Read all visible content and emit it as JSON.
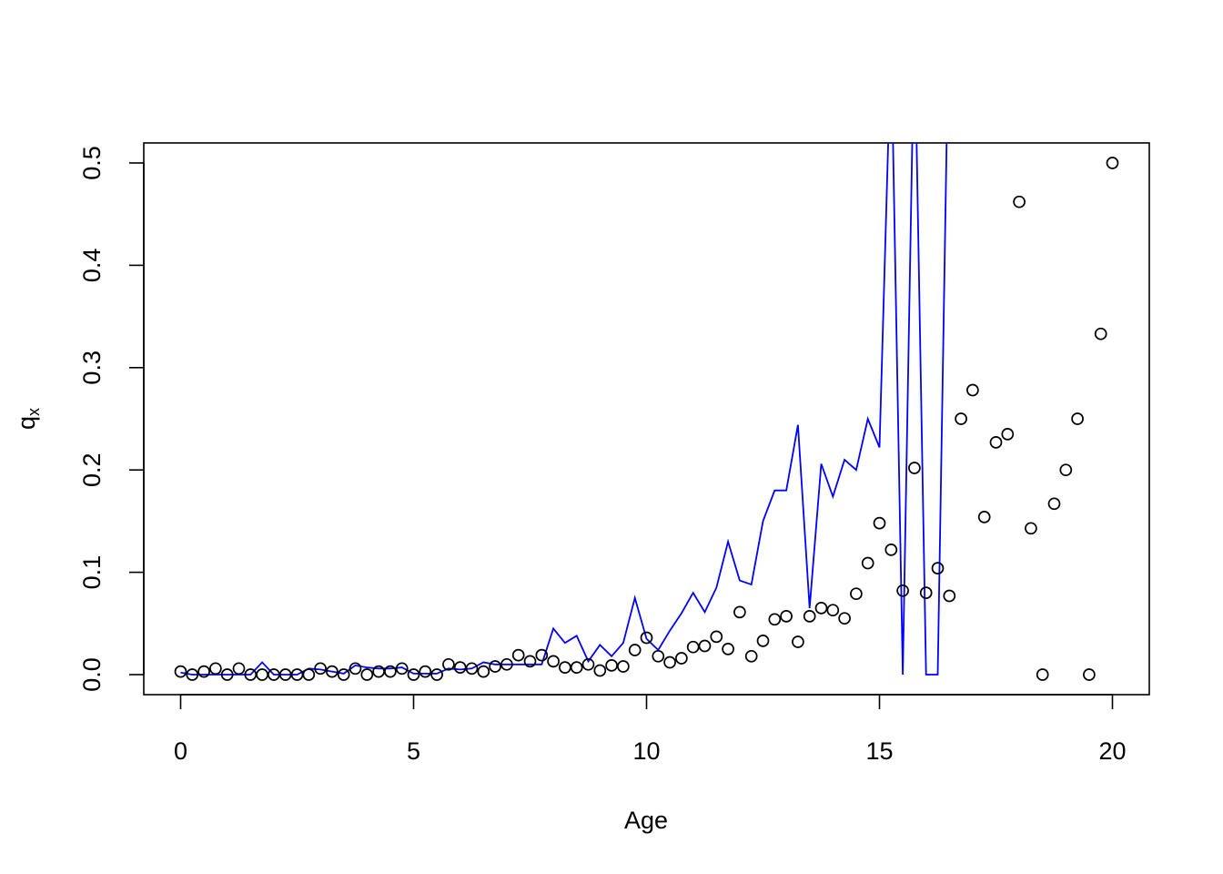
{
  "chart_data": {
    "type": "scatter",
    "xlabel": "Age",
    "ylabel": {
      "base": "q",
      "subscript": "x"
    },
    "xlim": [
      0,
      20
    ],
    "ylim": [
      0,
      0.5
    ],
    "x_ticks": [
      0,
      5,
      10,
      15,
      20
    ],
    "y_ticks": [
      0.0,
      0.1,
      0.2,
      0.3,
      0.4,
      0.5
    ],
    "x_tick_labels": [
      "0",
      "5",
      "10",
      "15",
      "20"
    ],
    "y_tick_labels": [
      "0.0",
      "0.1",
      "0.2",
      "0.3",
      "0.4",
      "0.5"
    ],
    "grid": false,
    "legend": "none",
    "series": [
      {
        "kind": "points",
        "color": "#000000",
        "points": [
          [
            0.0,
            0.003
          ],
          [
            0.25,
            0.0
          ],
          [
            0.5,
            0.003
          ],
          [
            0.75,
            0.006
          ],
          [
            1.0,
            0.0
          ],
          [
            1.25,
            0.006
          ],
          [
            1.5,
            0.0
          ],
          [
            1.75,
            0.0
          ],
          [
            2.0,
            0.0
          ],
          [
            2.25,
            0.0
          ],
          [
            2.5,
            0.0
          ],
          [
            2.75,
            0.0
          ],
          [
            3.0,
            0.006
          ],
          [
            3.25,
            0.003
          ],
          [
            3.5,
            0.0
          ],
          [
            3.75,
            0.006
          ],
          [
            4.0,
            0.0
          ],
          [
            4.25,
            0.003
          ],
          [
            4.5,
            0.003
          ],
          [
            4.75,
            0.006
          ],
          [
            5.0,
            0.0
          ],
          [
            5.25,
            0.003
          ],
          [
            5.5,
            0.0
          ],
          [
            5.75,
            0.01
          ],
          [
            6.0,
            0.007
          ],
          [
            6.25,
            0.006
          ],
          [
            6.5,
            0.003
          ],
          [
            6.75,
            0.008
          ],
          [
            7.0,
            0.01
          ],
          [
            7.25,
            0.019
          ],
          [
            7.5,
            0.013
          ],
          [
            7.75,
            0.019
          ],
          [
            8.0,
            0.013
          ],
          [
            8.25,
            0.007
          ],
          [
            8.5,
            0.007
          ],
          [
            8.75,
            0.01
          ],
          [
            9.0,
            0.004
          ],
          [
            9.25,
            0.009
          ],
          [
            9.5,
            0.008
          ],
          [
            9.75,
            0.024
          ],
          [
            10.0,
            0.036
          ],
          [
            10.25,
            0.018
          ],
          [
            10.5,
            0.012
          ],
          [
            10.75,
            0.016
          ],
          [
            11.0,
            0.027
          ],
          [
            11.25,
            0.028
          ],
          [
            11.5,
            0.037
          ],
          [
            11.75,
            0.025
          ],
          [
            12.0,
            0.061
          ],
          [
            12.25,
            0.018
          ],
          [
            12.5,
            0.033
          ],
          [
            12.75,
            0.054
          ],
          [
            13.0,
            0.057
          ],
          [
            13.25,
            0.032
          ],
          [
            13.5,
            0.057
          ],
          [
            13.75,
            0.065
          ],
          [
            14.0,
            0.063
          ],
          [
            14.25,
            0.055
          ],
          [
            14.5,
            0.079
          ],
          [
            14.75,
            0.109
          ],
          [
            15.0,
            0.148
          ],
          [
            15.25,
            0.122
          ],
          [
            15.5,
            0.082
          ],
          [
            15.75,
            0.202
          ],
          [
            16.0,
            0.08
          ],
          [
            16.25,
            0.104
          ],
          [
            16.5,
            0.077
          ],
          [
            16.75,
            0.25
          ],
          [
            17.0,
            0.278
          ],
          [
            17.25,
            0.154
          ],
          [
            17.5,
            0.227
          ],
          [
            17.75,
            0.235
          ],
          [
            18.0,
            0.462
          ],
          [
            18.25,
            0.143
          ],
          [
            18.5,
            0.0
          ],
          [
            18.75,
            0.167
          ],
          [
            19.0,
            0.2
          ],
          [
            19.25,
            0.25
          ],
          [
            19.5,
            0.0
          ],
          [
            19.75,
            0.333
          ],
          [
            20.0,
            0.5
          ]
        ]
      },
      {
        "kind": "line",
        "color": "#0000ff",
        "points": [
          [
            0.0,
            0.002
          ],
          [
            0.25,
            0.0
          ],
          [
            0.5,
            0.0
          ],
          [
            0.75,
            0.0
          ],
          [
            1.0,
            0.0
          ],
          [
            1.25,
            0.0
          ],
          [
            1.5,
            0.0
          ],
          [
            1.75,
            0.012
          ],
          [
            2.0,
            0.0
          ],
          [
            2.25,
            0.0
          ],
          [
            2.5,
            0.0
          ],
          [
            2.75,
            0.006
          ],
          [
            3.0,
            0.005
          ],
          [
            3.25,
            0.003
          ],
          [
            3.5,
            0.001
          ],
          [
            3.75,
            0.009
          ],
          [
            4.0,
            0.007
          ],
          [
            4.25,
            0.006
          ],
          [
            4.5,
            0.006
          ],
          [
            4.75,
            0.007
          ],
          [
            5.0,
            0.001
          ],
          [
            5.25,
            0.001
          ],
          [
            5.5,
            0.001
          ],
          [
            5.75,
            0.006
          ],
          [
            6.0,
            0.005
          ],
          [
            6.25,
            0.006
          ],
          [
            6.5,
            0.012
          ],
          [
            6.75,
            0.01
          ],
          [
            7.0,
            0.01
          ],
          [
            7.25,
            0.01
          ],
          [
            7.5,
            0.01
          ],
          [
            7.75,
            0.01
          ],
          [
            8.0,
            0.045
          ],
          [
            8.25,
            0.031
          ],
          [
            8.5,
            0.038
          ],
          [
            8.75,
            0.013
          ],
          [
            9.0,
            0.029
          ],
          [
            9.25,
            0.018
          ],
          [
            9.5,
            0.031
          ],
          [
            9.75,
            0.075
          ],
          [
            10.0,
            0.035
          ],
          [
            10.25,
            0.024
          ],
          [
            10.5,
            0.043
          ],
          [
            10.75,
            0.06
          ],
          [
            11.0,
            0.08
          ],
          [
            11.25,
            0.061
          ],
          [
            11.5,
            0.085
          ],
          [
            11.75,
            0.13
          ],
          [
            12.0,
            0.092
          ],
          [
            12.25,
            0.088
          ],
          [
            12.5,
            0.15
          ],
          [
            12.75,
            0.18
          ],
          [
            13.0,
            0.18
          ],
          [
            13.25,
            0.244
          ],
          [
            13.5,
            0.065
          ],
          [
            13.75,
            0.206
          ],
          [
            14.0,
            0.174
          ],
          [
            14.25,
            0.21
          ],
          [
            14.5,
            0.2
          ],
          [
            14.75,
            0.25
          ],
          [
            15.0,
            0.222
          ],
          [
            15.25,
            0.62
          ],
          [
            15.5,
            0.0
          ],
          [
            15.75,
            0.64
          ],
          [
            16.0,
            0.0
          ],
          [
            16.25,
            0.0
          ],
          [
            16.5,
            0.68
          ]
        ]
      }
    ]
  }
}
